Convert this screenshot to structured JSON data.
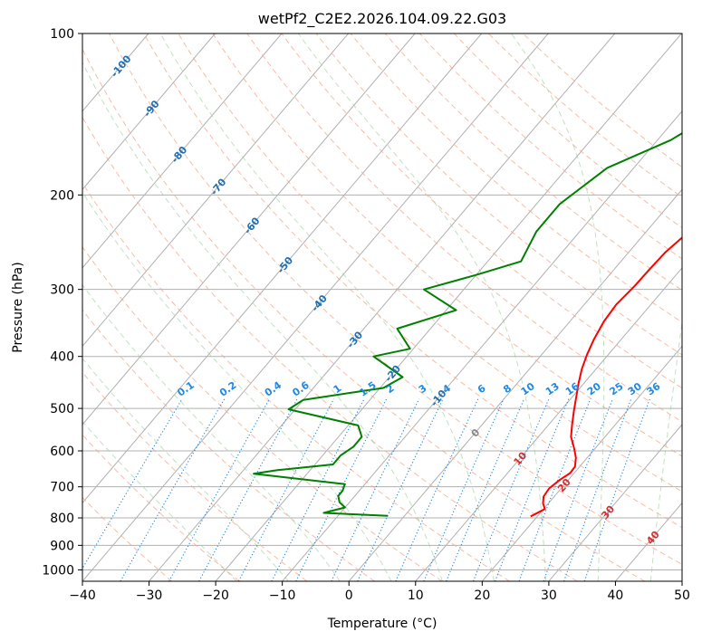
{
  "chart_data": {
    "type": "line",
    "title": "wetPf2_C2E2.2026.104.09.22.G03",
    "xlabel": "Temperature (°C)",
    "ylabel": "Pressure (hPa)",
    "xlim": [
      -40,
      50
    ],
    "ylim": [
      1050,
      100
    ],
    "y_scale": "log",
    "grid": true,
    "x_ticks": [
      -40,
      -30,
      -20,
      -10,
      0,
      10,
      20,
      30,
      40,
      50
    ],
    "x_tick_labels": [
      "−40",
      "−30",
      "−20",
      "−10",
      "0",
      "10",
      "20",
      "30",
      "40",
      "50"
    ],
    "y_ticks": [
      1000,
      900,
      800,
      700,
      600,
      500,
      400,
      300,
      200,
      100
    ],
    "y_tick_labels": [
      "1000",
      "900",
      "800",
      "700",
      "600",
      "500",
      "400",
      "300",
      "200",
      "100"
    ],
    "isotherm_labels": [
      {
        "text": "-100",
        "t": -100,
        "p": 115
      },
      {
        "text": "-90",
        "t": -90,
        "p": 138
      },
      {
        "text": "-80",
        "t": -80,
        "p": 168
      },
      {
        "text": "-70",
        "t": -70,
        "p": 193
      },
      {
        "text": "-60",
        "t": -60,
        "p": 228
      },
      {
        "text": "-50",
        "t": -50,
        "p": 270
      },
      {
        "text": "-40",
        "t": -40,
        "p": 318
      },
      {
        "text": "-30",
        "t": -30,
        "p": 372
      },
      {
        "text": "-20",
        "t": -20,
        "p": 430
      },
      {
        "text": "-10",
        "t": -10,
        "p": 478
      },
      {
        "text": "0",
        "t": 0,
        "p": 555
      },
      {
        "text": "10",
        "t": 10,
        "p": 620
      },
      {
        "text": "20",
        "t": 20,
        "p": 695
      },
      {
        "text": "30",
        "t": 30,
        "p": 780
      },
      {
        "text": "40",
        "t": 40,
        "p": 870
      }
    ],
    "mixing_ratio_labels": [
      "0.1",
      "0.2",
      "0.4",
      "0.6",
      "1",
      "1.5",
      "2",
      "3",
      "4",
      "6",
      "8",
      "10",
      "13",
      "16",
      "20",
      "25",
      "30",
      "36"
    ],
    "mixing_ratio_label_pressure": 480,
    "series": [
      {
        "color": "#ff0000",
        "points": [
          [
            19,
            795
          ],
          [
            20.2,
            770
          ],
          [
            19.2,
            752
          ],
          [
            18.4,
            730
          ],
          [
            18.2,
            705
          ],
          [
            18.7,
            680
          ],
          [
            19.4,
            660
          ],
          [
            19.3,
            642
          ],
          [
            18.3,
            618
          ],
          [
            16.8,
            593
          ],
          [
            14.9,
            565
          ],
          [
            13.6,
            538
          ],
          [
            12.0,
            505
          ],
          [
            10.7,
            478
          ],
          [
            9.2,
            449
          ],
          [
            7.9,
            423
          ],
          [
            6.8,
            397
          ],
          [
            5.9,
            372
          ],
          [
            5.1,
            344
          ],
          [
            4.8,
            320
          ],
          [
            5.2,
            296
          ],
          [
            5.3,
            275
          ],
          [
            5.5,
            256
          ],
          [
            6.5,
            232
          ],
          [
            7.3,
            213
          ],
          [
            7.4,
            196
          ],
          [
            6.9,
            182
          ],
          [
            6.3,
            168
          ],
          [
            6.2,
            154
          ],
          [
            6.6,
            138
          ],
          [
            6.8,
            126
          ],
          [
            7.9,
            116
          ],
          [
            10.1,
            108
          ],
          [
            13.2,
            100
          ]
        ]
      },
      {
        "color": "#008000",
        "points": [
          [
            -2.5,
            793
          ],
          [
            -12.5,
            783
          ],
          [
            -10,
            765
          ],
          [
            -11.5,
            748
          ],
          [
            -12.5,
            728
          ],
          [
            -12.5,
            712
          ],
          [
            -13,
            692
          ],
          [
            -28,
            662
          ],
          [
            -25,
            652
          ],
          [
            -17.3,
            636
          ],
          [
            -17.3,
            612
          ],
          [
            -16.5,
            589
          ],
          [
            -16.5,
            565
          ],
          [
            -18.5,
            538
          ],
          [
            -31,
            502
          ],
          [
            -30,
            482
          ],
          [
            -19.5,
            458
          ],
          [
            -18,
            437
          ],
          [
            -25,
            400
          ],
          [
            -20.5,
            387
          ],
          [
            -25,
            355
          ],
          [
            -18.5,
            328
          ],
          [
            -26,
            300
          ],
          [
            -20,
            282
          ],
          [
            -15,
            266
          ],
          [
            -16.5,
            234
          ],
          [
            -16.5,
            208
          ],
          [
            -14,
            178
          ],
          [
            -8,
            158
          ],
          [
            -2.5,
            130
          ],
          [
            8,
            100
          ]
        ]
      }
    ]
  }
}
